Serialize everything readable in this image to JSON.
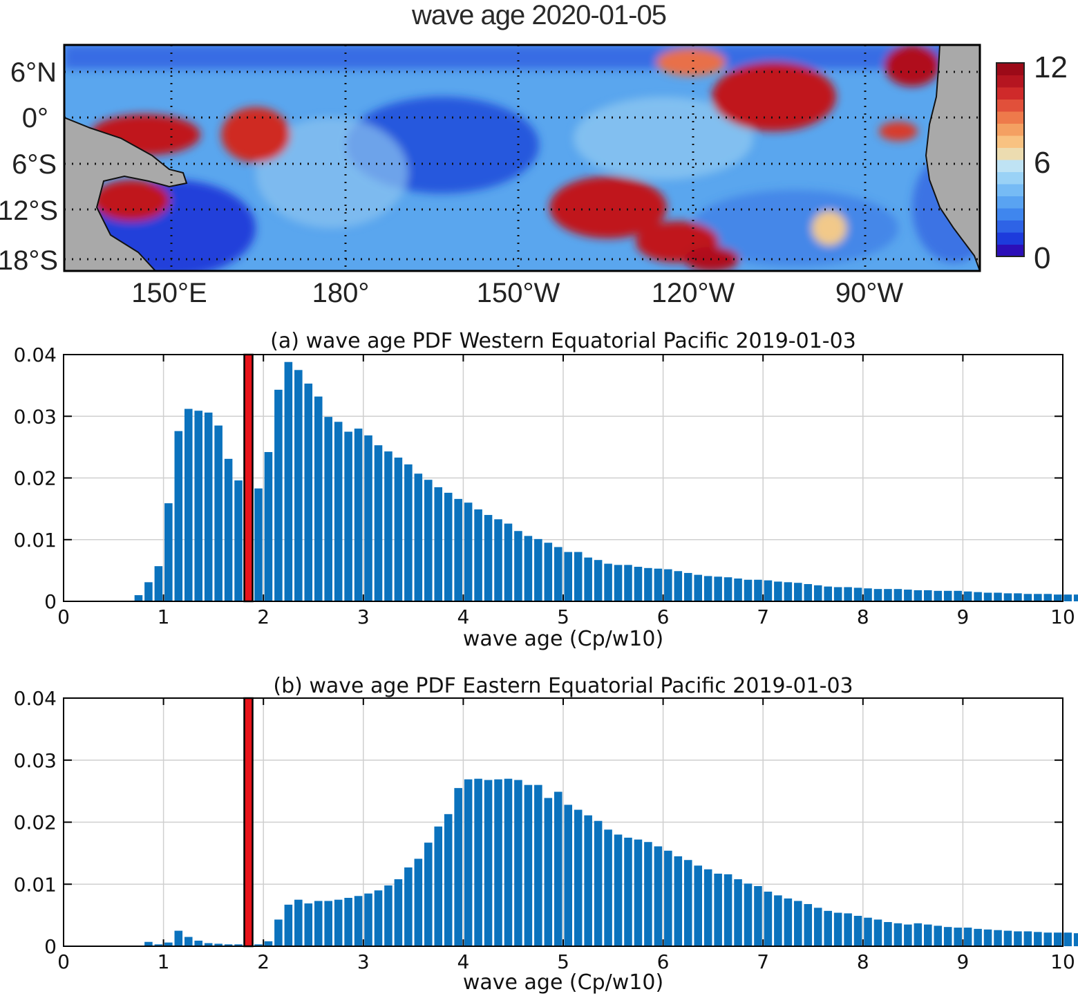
{
  "map": {
    "title": "wave age 2020-01-05",
    "lat_labels": [
      "6°N",
      "0°",
      "6°S",
      "12°S",
      "18°S"
    ],
    "lon_labels": [
      "150°E",
      "180°",
      "150°W",
      "120°W",
      "90°W"
    ],
    "colorbar": {
      "min_label": "0",
      "mid_label": "6",
      "max_label": "12",
      "range": [
        0,
        12
      ]
    },
    "colors": {
      "land": "#a9a9a9",
      "low": "#1b2ed6",
      "mid": "#5aa6ee",
      "high": "#c0141c"
    }
  },
  "chart_data": [
    {
      "type": "bar",
      "title": "(a) wave age PDF Western Equatorial Pacific 2019-01-03",
      "xlabel": "wave age (Cp/w10)",
      "ylabel": "",
      "xlim": [
        0,
        10
      ],
      "ylim": [
        0,
        0.04
      ],
      "xticks": [
        0,
        1,
        2,
        3,
        4,
        5,
        6,
        7,
        8,
        9,
        10
      ],
      "yticks": [
        "0",
        "0.01",
        "0.02",
        "0.03",
        "0.04"
      ],
      "grid": true,
      "bin_start": 0.7,
      "bin_width": 0.1,
      "values": [
        0.001,
        0.0031,
        0.0057,
        0.0159,
        0.0276,
        0.0312,
        0.0309,
        0.0306,
        0.0285,
        0.0231,
        0.0196,
        0.0151,
        0.0183,
        0.0242,
        0.0343,
        0.0388,
        0.0375,
        0.0353,
        0.0332,
        0.0299,
        0.0291,
        0.0275,
        0.028,
        0.0269,
        0.0253,
        0.0243,
        0.0233,
        0.0222,
        0.0207,
        0.0197,
        0.0185,
        0.0176,
        0.0166,
        0.016,
        0.0149,
        0.014,
        0.0133,
        0.0126,
        0.0114,
        0.0106,
        0.0101,
        0.0095,
        0.0088,
        0.008,
        0.008,
        0.0071,
        0.0067,
        0.0061,
        0.0059,
        0.0059,
        0.0056,
        0.0054,
        0.0053,
        0.0052,
        0.0049,
        0.0046,
        0.0043,
        0.0041,
        0.004,
        0.0039,
        0.0037,
        0.0035,
        0.0035,
        0.0034,
        0.0032,
        0.0031,
        0.003,
        0.0028,
        0.0026,
        0.0024,
        0.0023,
        0.0023,
        0.0022,
        0.0021,
        0.002,
        0.002,
        0.002,
        0.0019,
        0.0018,
        0.0018,
        0.0017,
        0.0017,
        0.0017,
        0.0016,
        0.0015,
        0.0014,
        0.0014,
        0.0013,
        0.0013,
        0.0012,
        0.0012,
        0.0012,
        0.0011,
        0.0011,
        0.0011,
        0.001,
        0.001,
        0.001,
        0.0009,
        0.0009,
        0.0008,
        0.0008,
        0.0008,
        0.0008,
        0.0007
      ],
      "bar_color": "#0b72bd",
      "marker": {
        "x": 1.85,
        "color": "#e8141b"
      }
    },
    {
      "type": "bar",
      "title": "(b) wave age PDF Eastern Equatorial Pacific 2019-01-03",
      "xlabel": "wave age (Cp/w10)",
      "ylabel": "",
      "xlim": [
        0,
        10
      ],
      "ylim": [
        0,
        0.04
      ],
      "xticks": [
        0,
        1,
        2,
        3,
        4,
        5,
        6,
        7,
        8,
        9,
        10
      ],
      "yticks": [
        "0",
        "0.01",
        "0.02",
        "0.03",
        "0.04"
      ],
      "grid": true,
      "bin_start": 0.7,
      "bin_width": 0.1,
      "values": [
        0.0001,
        0.0007,
        0.0003,
        0.0006,
        0.0025,
        0.0015,
        0.0009,
        0.0005,
        0.0004,
        0.0003,
        0.0003,
        0.0002,
        0.0003,
        0.0008,
        0.0043,
        0.0067,
        0.0075,
        0.0069,
        0.0073,
        0.0073,
        0.0075,
        0.0078,
        0.0081,
        0.0085,
        0.009,
        0.0098,
        0.0108,
        0.0127,
        0.0141,
        0.0167,
        0.0193,
        0.0213,
        0.0255,
        0.0269,
        0.027,
        0.0268,
        0.0269,
        0.027,
        0.0268,
        0.026,
        0.026,
        0.0239,
        0.0249,
        0.0228,
        0.022,
        0.0211,
        0.0202,
        0.0188,
        0.018,
        0.0175,
        0.0172,
        0.0168,
        0.0161,
        0.0154,
        0.0145,
        0.0139,
        0.013,
        0.0124,
        0.0117,
        0.0116,
        0.0108,
        0.0101,
        0.0097,
        0.0088,
        0.0082,
        0.0077,
        0.0073,
        0.0068,
        0.0062,
        0.0057,
        0.0054,
        0.0053,
        0.0049,
        0.0046,
        0.0043,
        0.0039,
        0.0037,
        0.0035,
        0.0037,
        0.0035,
        0.0033,
        0.0031,
        0.003,
        0.003,
        0.0028,
        0.0027,
        0.0026,
        0.0025,
        0.0024,
        0.0024,
        0.0023,
        0.0022,
        0.0022,
        0.0022,
        0.0021,
        0.0021,
        0.002,
        0.002,
        0.002,
        0.0019,
        0.0019,
        0.0018
      ],
      "bar_color": "#0b72bd",
      "marker": {
        "x": 1.85,
        "color": "#e8141b"
      }
    }
  ]
}
